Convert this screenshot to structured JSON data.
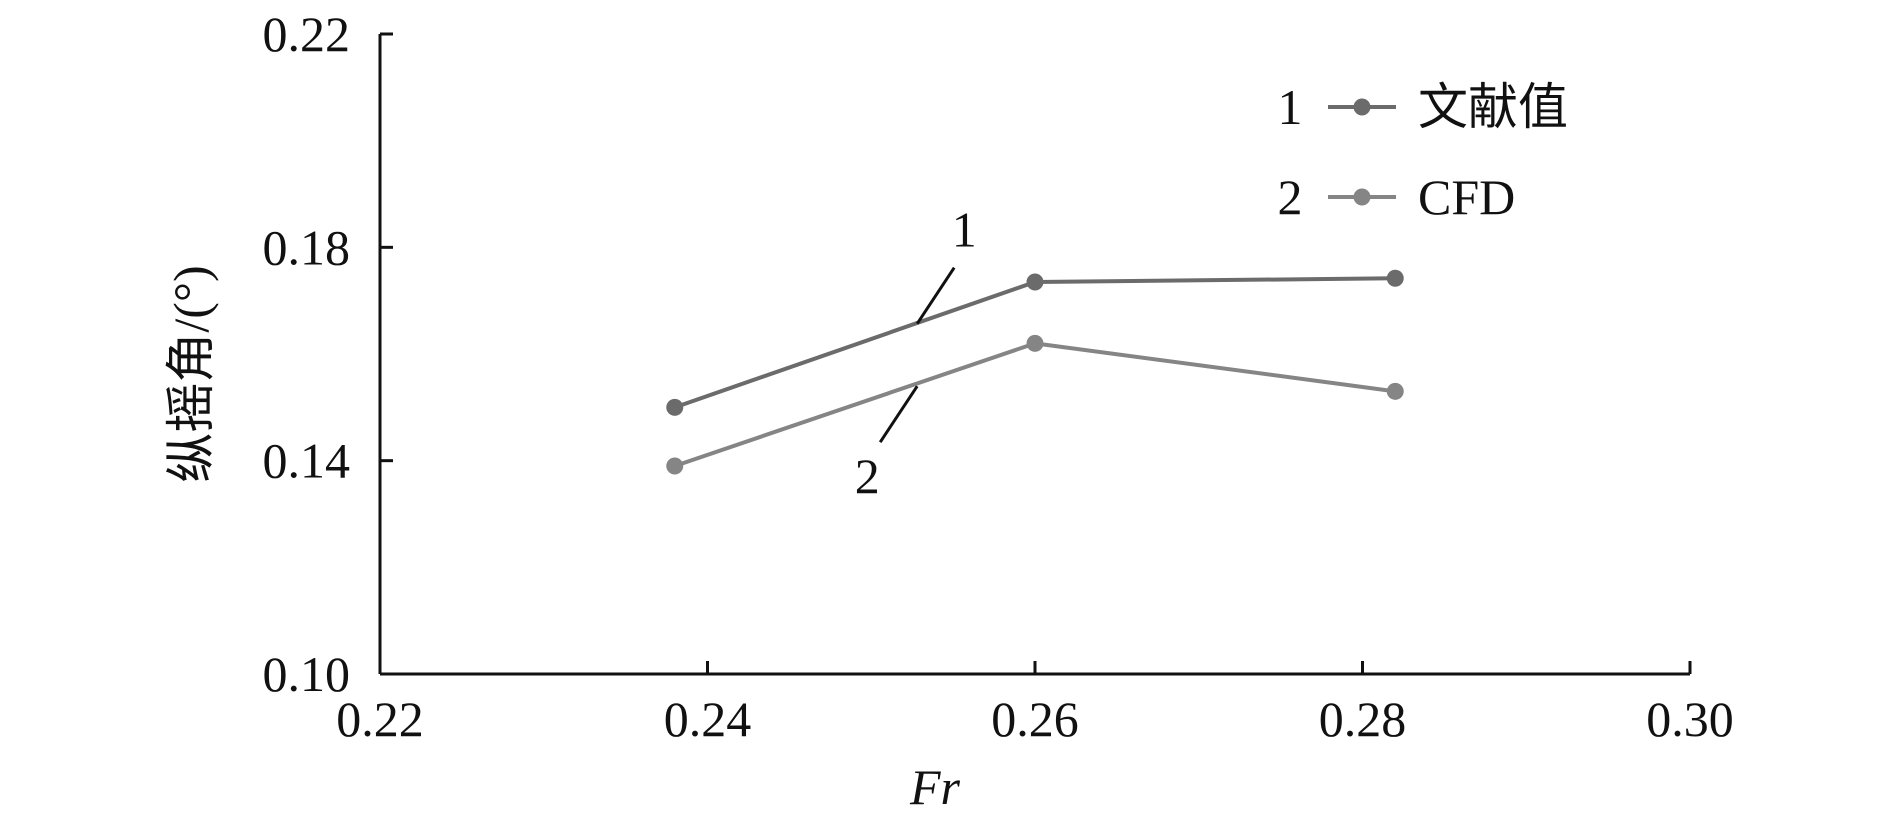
{
  "chart_data": {
    "type": "line",
    "xlabel": "Fr",
    "ylabel": "纵摇角/(°)",
    "xlim": [
      0.22,
      0.3
    ],
    "ylim": [
      0.1,
      0.22
    ],
    "x_ticks": [
      "0.22",
      "0.24",
      "0.26",
      "0.28",
      "0.30"
    ],
    "y_ticks": [
      "0.10",
      "0.14",
      "0.18",
      "0.22"
    ],
    "grid": false,
    "legend_position": "top-right",
    "x": [
      0.238,
      0.26,
      0.282
    ],
    "series": [
      {
        "id": "1",
        "name": "文献值",
        "values": [
          0.15,
          0.1735,
          0.1742
        ],
        "color": "#6b6b6b"
      },
      {
        "id": "2",
        "name": "CFD",
        "values": [
          0.139,
          0.162,
          0.153
        ],
        "color": "#858585"
      }
    ]
  }
}
